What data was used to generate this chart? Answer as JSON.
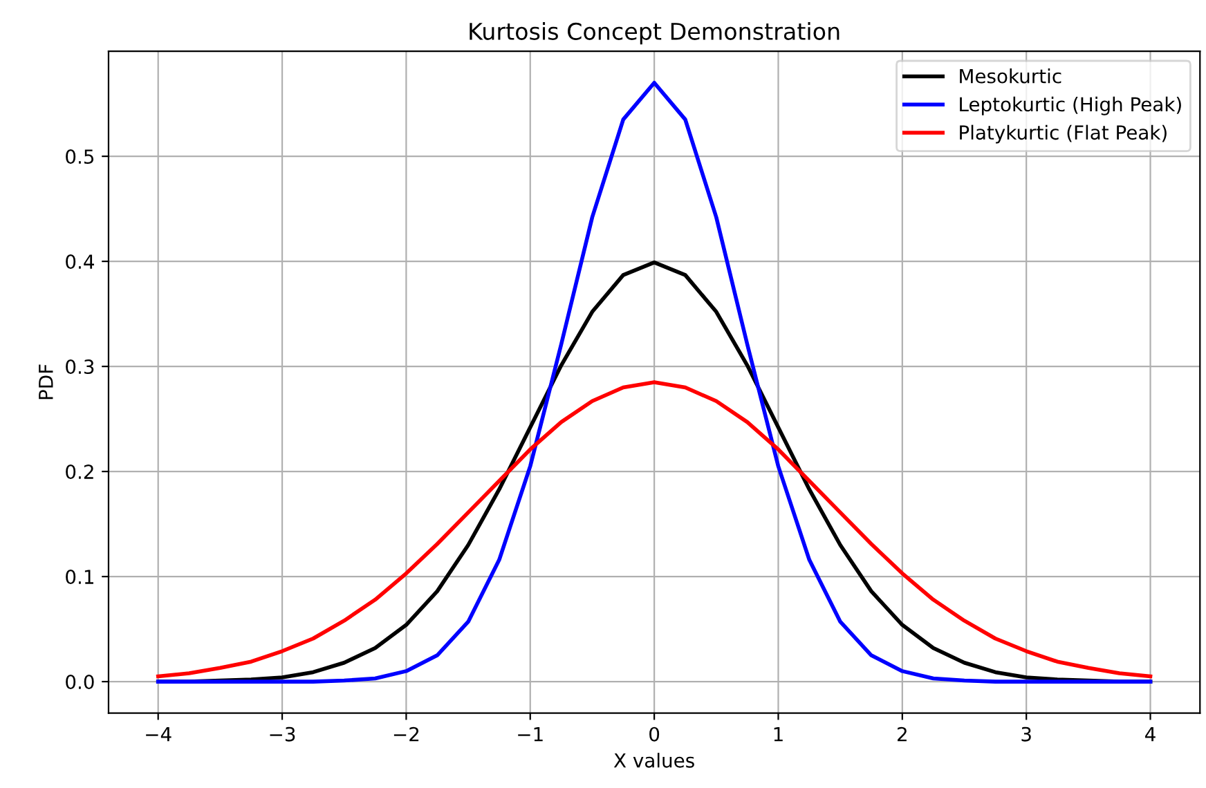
{
  "chart_data": {
    "type": "line",
    "title": "Kurtosis Concept Demonstration",
    "xlabel": "X values",
    "ylabel": "PDF",
    "x": [
      -4,
      -3.75,
      -3.5,
      -3.25,
      -3,
      -2.75,
      -2.5,
      -2.25,
      -2,
      -1.75,
      -1.5,
      -1.25,
      -1,
      -0.75,
      -0.5,
      -0.25,
      0,
      0.25,
      0.5,
      0.75,
      1,
      1.25,
      1.5,
      1.75,
      2,
      2.25,
      2.5,
      2.75,
      3,
      3.25,
      3.5,
      3.75,
      4
    ],
    "series": [
      {
        "name": "Mesokurtic",
        "color": "#000000",
        "values": [
          0.0,
          0.0,
          0.001,
          0.002,
          0.004,
          0.009,
          0.018,
          0.032,
          0.054,
          0.086,
          0.13,
          0.183,
          0.242,
          0.301,
          0.352,
          0.387,
          0.399,
          0.387,
          0.352,
          0.301,
          0.242,
          0.183,
          0.13,
          0.086,
          0.054,
          0.032,
          0.018,
          0.009,
          0.004,
          0.002,
          0.001,
          0.0,
          0.0
        ]
      },
      {
        "name": "Leptokurtic (High Peak)",
        "color": "#0000ff",
        "values": [
          0.0,
          0.0,
          0.0,
          0.0,
          0.0,
          0.0,
          0.001,
          0.003,
          0.01,
          0.025,
          0.057,
          0.116,
          0.205,
          0.321,
          0.442,
          0.535,
          0.57,
          0.535,
          0.442,
          0.321,
          0.205,
          0.116,
          0.057,
          0.025,
          0.01,
          0.003,
          0.001,
          0.0,
          0.0,
          0.0,
          0.0,
          0.0,
          0.0
        ]
      },
      {
        "name": "Platykurtic (Flat Peak)",
        "color": "#ff0000",
        "values": [
          0.005,
          0.008,
          0.013,
          0.019,
          0.029,
          0.041,
          0.058,
          0.078,
          0.103,
          0.131,
          0.161,
          0.191,
          0.221,
          0.247,
          0.267,
          0.28,
          0.285,
          0.28,
          0.267,
          0.247,
          0.221,
          0.191,
          0.161,
          0.131,
          0.103,
          0.078,
          0.058,
          0.041,
          0.029,
          0.019,
          0.013,
          0.008,
          0.005
        ]
      }
    ],
    "xlim": [
      -4.4,
      4.4
    ],
    "ylim": [
      -0.03,
      0.6
    ],
    "xticks": [
      -4,
      -3,
      -2,
      -1,
      0,
      1,
      2,
      3,
      4
    ],
    "yticks": [
      {
        "value": 0,
        "label": "0.0"
      },
      0.1,
      0.2,
      0.3,
      0.4,
      0.5
    ],
    "grid": true,
    "legend": "top right",
    "line_style": "solid",
    "marker": "none"
  }
}
